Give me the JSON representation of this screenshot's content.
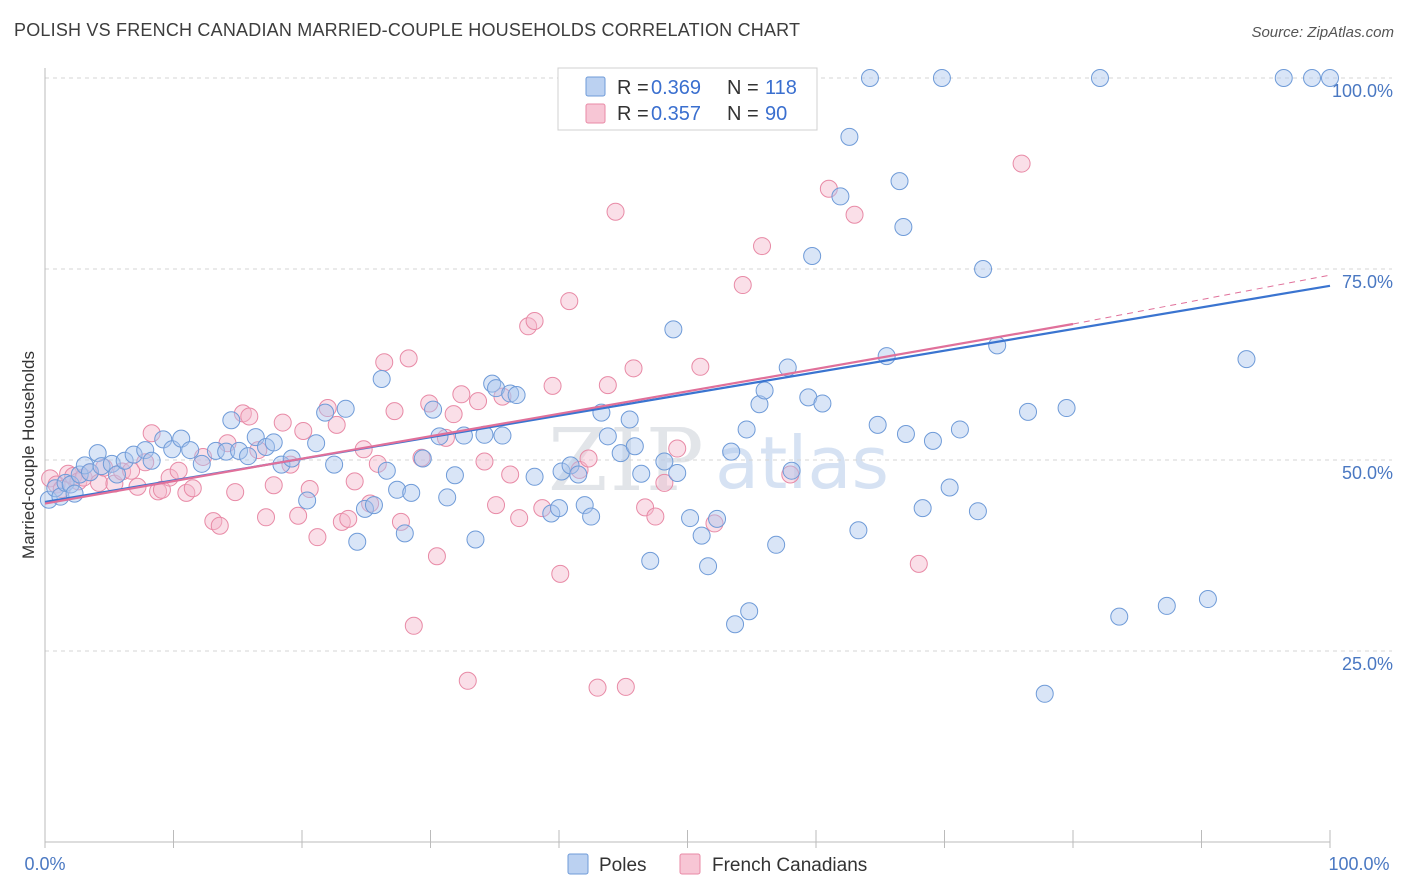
{
  "title": "POLISH VS FRENCH CANADIAN MARRIED-COUPLE HOUSEHOLDS CORRELATION CHART",
  "source": "Source: ZipAtlas.com",
  "watermark": {
    "zip": "ZIP",
    "atlas": "atlas"
  },
  "legend": {
    "r_label": "R =",
    "n_label": "N =",
    "poles_r": "0.369",
    "poles_n": "118",
    "fc_r": "0.357",
    "fc_n": "90"
  },
  "bottom_legend": {
    "poles": "Poles",
    "fc": "French Canadians"
  },
  "colors": {
    "poles_fill": "#aac6ee",
    "poles_stroke": "#6f9bd8",
    "poles_line": "#3a74d0",
    "fc_fill": "#f5b8cb",
    "fc_stroke": "#e88aa6",
    "fc_line": "#e0709a",
    "grid": "#d5d5d5",
    "tick_text": "#4a78c2"
  },
  "chart_data": {
    "type": "scatter",
    "title": "POLISH VS FRENCH CANADIAN MARRIED-COUPLE HOUSEHOLDS CORRELATION CHART",
    "xlabel": "",
    "ylabel": "Married-couple Households",
    "xlim": [
      0,
      100
    ],
    "ylim": [
      0,
      100
    ],
    "x_tick_labels": [
      "0.0%",
      "100.0%"
    ],
    "y_ticks": [
      25,
      50,
      75,
      100
    ],
    "y_tick_labels": [
      "25.0%",
      "50.0%",
      "75.0%",
      "100.0%"
    ],
    "series": [
      {
        "name": "Poles",
        "r": 0.369,
        "n": 118,
        "trend": {
          "x0": 0,
          "y0": 44.5,
          "x1": 100,
          "y1": 72.8
        },
        "points": [
          [
            0.3,
            44.8
          ],
          [
            0.8,
            46.3
          ],
          [
            1.2,
            45.2
          ],
          [
            1.6,
            47.0
          ],
          [
            2.0,
            46.8
          ],
          [
            2.3,
            45.6
          ],
          [
            2.7,
            48.1
          ],
          [
            3.1,
            49.3
          ],
          [
            3.5,
            48.4
          ],
          [
            4.1,
            50.9
          ],
          [
            4.4,
            49.2
          ],
          [
            5.2,
            49.5
          ],
          [
            5.6,
            48.1
          ],
          [
            6.2,
            49.9
          ],
          [
            6.9,
            50.7
          ],
          [
            7.8,
            51.3
          ],
          [
            8.3,
            49.9
          ],
          [
            9.2,
            52.7
          ],
          [
            9.9,
            51.4
          ],
          [
            10.6,
            52.8
          ],
          [
            11.3,
            51.3
          ],
          [
            12.2,
            49.5
          ],
          [
            13.3,
            51.2
          ],
          [
            14.1,
            51.1
          ],
          [
            14.5,
            55.2
          ],
          [
            15.1,
            51.2
          ],
          [
            15.8,
            50.5
          ],
          [
            16.4,
            53.0
          ],
          [
            17.2,
            51.7
          ],
          [
            17.8,
            52.3
          ],
          [
            18.4,
            49.4
          ],
          [
            19.2,
            50.2
          ],
          [
            20.4,
            44.7
          ],
          [
            21.1,
            52.2
          ],
          [
            21.8,
            56.2
          ],
          [
            22.5,
            49.4
          ],
          [
            23.4,
            56.7
          ],
          [
            24.3,
            39.3
          ],
          [
            24.9,
            43.6
          ],
          [
            25.6,
            44.1
          ],
          [
            26.2,
            60.6
          ],
          [
            26.6,
            48.6
          ],
          [
            27.4,
            46.1
          ],
          [
            28.0,
            40.4
          ],
          [
            28.5,
            45.7
          ],
          [
            29.4,
            50.2
          ],
          [
            30.2,
            56.6
          ],
          [
            30.7,
            53.1
          ],
          [
            31.3,
            45.1
          ],
          [
            31.9,
            48.0
          ],
          [
            32.6,
            53.2
          ],
          [
            33.5,
            39.6
          ],
          [
            34.2,
            53.3
          ],
          [
            34.8,
            60.0
          ],
          [
            35.1,
            59.4
          ],
          [
            35.6,
            53.2
          ],
          [
            36.2,
            58.7
          ],
          [
            36.7,
            58.5
          ],
          [
            38.1,
            47.8
          ],
          [
            39.4,
            43.0
          ],
          [
            40.0,
            43.7
          ],
          [
            40.2,
            48.5
          ],
          [
            40.9,
            49.3
          ],
          [
            41.5,
            48.1
          ],
          [
            42.0,
            44.1
          ],
          [
            42.5,
            42.6
          ],
          [
            43.3,
            56.2
          ],
          [
            43.8,
            53.1
          ],
          [
            44.8,
            50.9
          ],
          [
            45.5,
            55.3
          ],
          [
            45.9,
            51.8
          ],
          [
            46.4,
            48.2
          ],
          [
            47.1,
            36.8
          ],
          [
            48.2,
            49.8
          ],
          [
            48.9,
            67.1
          ],
          [
            49.2,
            48.3
          ],
          [
            50.2,
            42.4
          ],
          [
            51.1,
            40.1
          ],
          [
            51.6,
            36.1
          ],
          [
            52.3,
            42.3
          ],
          [
            53.4,
            51.1
          ],
          [
            53.7,
            28.5
          ],
          [
            54.6,
            54.0
          ],
          [
            54.8,
            30.2
          ],
          [
            55.6,
            57.3
          ],
          [
            56.0,
            59.1
          ],
          [
            56.9,
            38.9
          ],
          [
            57.8,
            62.1
          ],
          [
            58.1,
            48.6
          ],
          [
            59.4,
            58.2
          ],
          [
            59.7,
            76.7
          ],
          [
            60.5,
            57.4
          ],
          [
            61.9,
            84.5
          ],
          [
            62.6,
            92.3
          ],
          [
            63.3,
            40.8
          ],
          [
            64.2,
            100.0
          ],
          [
            64.8,
            54.6
          ],
          [
            65.5,
            63.6
          ],
          [
            66.5,
            86.5
          ],
          [
            66.8,
            80.5
          ],
          [
            67.0,
            53.4
          ],
          [
            68.3,
            43.7
          ],
          [
            69.1,
            52.5
          ],
          [
            69.8,
            100.0
          ],
          [
            70.4,
            46.4
          ],
          [
            71.2,
            54.0
          ],
          [
            72.6,
            43.3
          ],
          [
            73.0,
            75.0
          ],
          [
            74.1,
            65.0
          ],
          [
            76.5,
            56.3
          ],
          [
            77.8,
            19.4
          ],
          [
            79.5,
            56.8
          ],
          [
            82.1,
            100.0
          ],
          [
            83.6,
            29.5
          ],
          [
            87.3,
            30.9
          ],
          [
            90.5,
            31.8
          ],
          [
            93.5,
            63.2
          ],
          [
            96.4,
            100.0
          ],
          [
            98.6,
            100.0
          ],
          [
            100.0,
            100.0
          ]
        ]
      },
      {
        "name": "French Canadians",
        "r": 0.357,
        "n": 90,
        "trend": {
          "x0": 0,
          "y0": 44.3,
          "x1": 80,
          "y1": 67.8,
          "dash_x1": 100,
          "dash_y1": 74.2
        },
        "points": [
          [
            0.4,
            47.6
          ],
          [
            0.9,
            46.8
          ],
          [
            1.3,
            46.2
          ],
          [
            1.8,
            48.2
          ],
          [
            2.2,
            47.9
          ],
          [
            2.6,
            47.2
          ],
          [
            3.0,
            47.7
          ],
          [
            3.5,
            48.4
          ],
          [
            4.2,
            47.0
          ],
          [
            4.6,
            49.0
          ],
          [
            5.4,
            46.9
          ],
          [
            6.0,
            48.5
          ],
          [
            6.7,
            48.6
          ],
          [
            7.2,
            46.5
          ],
          [
            7.8,
            49.7
          ],
          [
            8.3,
            53.5
          ],
          [
            8.8,
            45.9
          ],
          [
            9.1,
            46.1
          ],
          [
            9.7,
            47.7
          ],
          [
            10.4,
            48.6
          ],
          [
            11.0,
            45.7
          ],
          [
            11.5,
            46.3
          ],
          [
            12.3,
            50.4
          ],
          [
            13.1,
            42.0
          ],
          [
            13.6,
            41.4
          ],
          [
            14.2,
            52.2
          ],
          [
            14.8,
            45.8
          ],
          [
            15.4,
            56.1
          ],
          [
            15.9,
            55.7
          ],
          [
            16.6,
            51.3
          ],
          [
            17.2,
            42.5
          ],
          [
            17.8,
            46.7
          ],
          [
            18.5,
            54.9
          ],
          [
            19.1,
            49.4
          ],
          [
            19.7,
            42.7
          ],
          [
            20.1,
            53.8
          ],
          [
            20.6,
            46.2
          ],
          [
            21.2,
            39.9
          ],
          [
            22.0,
            56.8
          ],
          [
            22.7,
            54.6
          ],
          [
            23.1,
            41.9
          ],
          [
            23.6,
            42.3
          ],
          [
            24.1,
            47.2
          ],
          [
            24.8,
            51.4
          ],
          [
            25.3,
            44.3
          ],
          [
            25.9,
            49.5
          ],
          [
            26.4,
            62.8
          ],
          [
            27.2,
            56.4
          ],
          [
            27.7,
            41.9
          ],
          [
            28.3,
            63.3
          ],
          [
            28.7,
            28.3
          ],
          [
            29.3,
            50.3
          ],
          [
            29.9,
            57.4
          ],
          [
            30.5,
            37.4
          ],
          [
            31.2,
            52.9
          ],
          [
            31.8,
            56.0
          ],
          [
            32.4,
            58.6
          ],
          [
            32.9,
            21.1
          ],
          [
            33.7,
            57.7
          ],
          [
            34.2,
            49.8
          ],
          [
            35.1,
            44.1
          ],
          [
            35.6,
            58.3
          ],
          [
            36.2,
            48.1
          ],
          [
            36.9,
            42.4
          ],
          [
            37.6,
            67.5
          ],
          [
            38.1,
            68.2
          ],
          [
            38.7,
            43.7
          ],
          [
            39.5,
            59.7
          ],
          [
            40.1,
            35.1
          ],
          [
            40.8,
            70.8
          ],
          [
            41.6,
            48.7
          ],
          [
            42.3,
            50.2
          ],
          [
            43.0,
            20.2
          ],
          [
            43.8,
            59.8
          ],
          [
            44.4,
            82.5
          ],
          [
            45.2,
            20.3
          ],
          [
            45.8,
            62.0
          ],
          [
            46.7,
            43.8
          ],
          [
            47.5,
            42.6
          ],
          [
            48.2,
            47.0
          ],
          [
            49.2,
            51.5
          ],
          [
            51.0,
            62.2
          ],
          [
            52.1,
            41.7
          ],
          [
            54.3,
            72.9
          ],
          [
            55.8,
            78.0
          ],
          [
            58.0,
            48.1
          ],
          [
            61.0,
            85.5
          ],
          [
            63.0,
            82.1
          ],
          [
            68.0,
            36.4
          ],
          [
            76.0,
            88.8
          ]
        ]
      }
    ]
  }
}
